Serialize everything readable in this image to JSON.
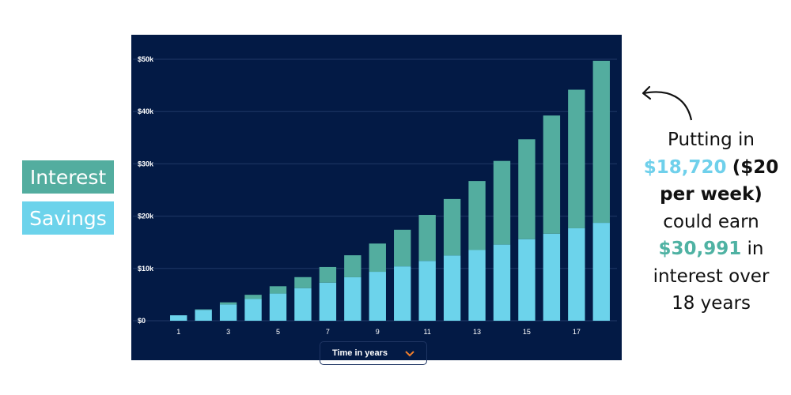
{
  "legend": {
    "interest_label": "Interest",
    "savings_label": "Savings",
    "interest_color": "#53ad9f",
    "savings_color": "#6cd3eb"
  },
  "axis_selector": {
    "label": "Time in years",
    "icon": "chevron-down-icon"
  },
  "callout": {
    "line1": "Putting in",
    "savings_amount": "$18,720",
    "weekly_note": "($20 per week)",
    "line3": "could earn",
    "interest_amount": "$30,991",
    "line4": "in interest over 18 years"
  },
  "chart_data": {
    "type": "bar",
    "stacked": true,
    "categories": [
      1,
      2,
      3,
      4,
      5,
      6,
      7,
      8,
      9,
      10,
      11,
      12,
      13,
      14,
      15,
      16,
      17,
      18
    ],
    "x_tick_labels": [
      "1",
      "3",
      "5",
      "7",
      "9",
      "11",
      "13",
      "15",
      "17"
    ],
    "y_tick_labels": [
      "$0",
      "$10k",
      "$20k",
      "$30k",
      "$40k",
      "$50k"
    ],
    "ylim": [
      0,
      50000
    ],
    "xlabel": "Time in years",
    "series": [
      {
        "name": "Savings",
        "color": "#6cd3eb",
        "values": [
          1040,
          2080,
          3120,
          4160,
          5200,
          6240,
          7280,
          8320,
          9360,
          10400,
          11440,
          12480,
          13520,
          14560,
          15600,
          16640,
          17680,
          18720
        ]
      },
      {
        "name": "Interest",
        "color": "#53ad9f",
        "values": [
          0,
          100,
          400,
          800,
          1400,
          2100,
          3000,
          4200,
          5400,
          7000,
          8800,
          10800,
          13200,
          16000,
          19100,
          22600,
          26500,
          30991
        ]
      }
    ],
    "grid": true,
    "background": "#031a45"
  }
}
